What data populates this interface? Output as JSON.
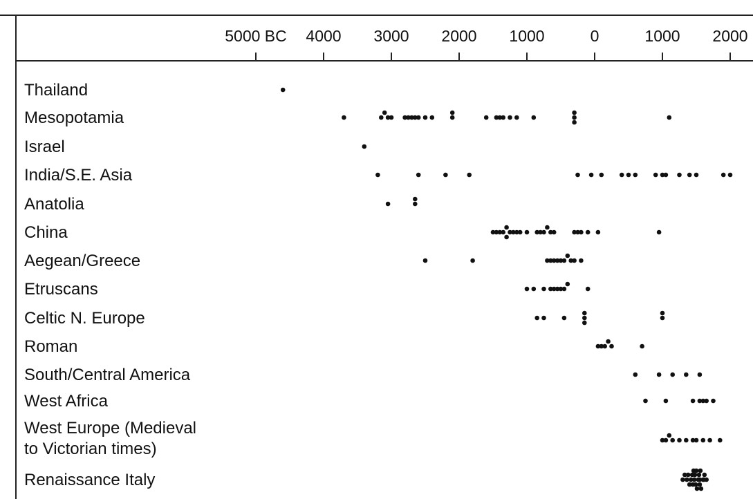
{
  "chart_data": {
    "type": "scatter",
    "title": "",
    "xlabel": "",
    "ylabel": "",
    "x_unit": "year (negative = BC)",
    "x_range": [
      -5200,
      2300
    ],
    "grid": false,
    "legend": "none",
    "point_color": "#111111",
    "x_ticks": [
      {
        "value": -5000,
        "label": "5000 BC"
      },
      {
        "value": -4000,
        "label": "4000"
      },
      {
        "value": -3000,
        "label": "3000"
      },
      {
        "value": -2000,
        "label": "2000"
      },
      {
        "value": -1000,
        "label": "1000"
      },
      {
        "value": 0,
        "label": "0"
      },
      {
        "value": 1000,
        "label": "1000"
      },
      {
        "value": 2000,
        "label": "2000"
      }
    ],
    "categories": [
      {
        "lines": [
          "Thailand"
        ],
        "x": [
          -4600
        ]
      },
      {
        "lines": [
          "Mesopotamia"
        ],
        "x": [
          -3700,
          -3150,
          -3100,
          -3050,
          -3000,
          -2800,
          -2750,
          -2700,
          -2650,
          -2600,
          -2500,
          -2400,
          -2100,
          -2100,
          -1600,
          -1450,
          -1400,
          -1350,
          -1250,
          -1150,
          -900,
          -300,
          -300,
          -300,
          1100
        ]
      },
      {
        "lines": [
          "Israel"
        ],
        "x": [
          -3400
        ]
      },
      {
        "lines": [
          "India/S.E. Asia"
        ],
        "x": [
          -3200,
          -2600,
          -2200,
          -1850,
          -250,
          -50,
          100,
          400,
          500,
          600,
          900,
          1000,
          1050,
          1250,
          1400,
          1500,
          1900,
          2000
        ]
      },
      {
        "lines": [
          "Anatolia"
        ],
        "x": [
          -3050,
          -2650,
          -2650
        ]
      },
      {
        "lines": [
          "China"
        ],
        "x": [
          -1500,
          -1450,
          -1400,
          -1350,
          -1300,
          -1300,
          -1250,
          -1200,
          -1150,
          -1100,
          -1000,
          -850,
          -800,
          -750,
          -700,
          -650,
          -600,
          -300,
          -250,
          -200,
          -100,
          50,
          950
        ]
      },
      {
        "lines": [
          "Aegean/Greece"
        ],
        "x": [
          -2500,
          -1800,
          -700,
          -650,
          -600,
          -550,
          -500,
          -450,
          -400,
          -350,
          -300,
          -200
        ]
      },
      {
        "lines": [
          "Etruscans"
        ],
        "x": [
          -1000,
          -900,
          -750,
          -650,
          -600,
          -550,
          -500,
          -450,
          -400,
          -100
        ]
      },
      {
        "lines": [
          "Celtic N. Europe"
        ],
        "x": [
          -850,
          -750,
          -450,
          -150,
          -150,
          -150,
          1000,
          1000
        ]
      },
      {
        "lines": [
          "Roman"
        ],
        "x": [
          50,
          100,
          150,
          200,
          250,
          700
        ]
      },
      {
        "lines": [
          "South/Central America"
        ],
        "x": [
          600,
          950,
          1150,
          1350,
          1550
        ]
      },
      {
        "lines": [
          "West Africa"
        ],
        "x": [
          750,
          1050,
          1450,
          1550,
          1600,
          1650,
          1750
        ]
      },
      {
        "lines": [
          "West Europe (Medieval",
          "to Victorian times)"
        ],
        "x": [
          1000,
          1050,
          1100,
          1150,
          1250,
          1350,
          1450,
          1500,
          1600,
          1700,
          1850
        ]
      },
      {
        "lines": [
          "Renaissance Italy"
        ],
        "x": [
          1300,
          1330,
          1360,
          1380,
          1400,
          1420,
          1440,
          1450,
          1460,
          1470,
          1480,
          1490,
          1500,
          1510,
          1520,
          1530,
          1540,
          1550,
          1560,
          1570,
          1580,
          1600,
          1620,
          1650
        ]
      }
    ]
  }
}
